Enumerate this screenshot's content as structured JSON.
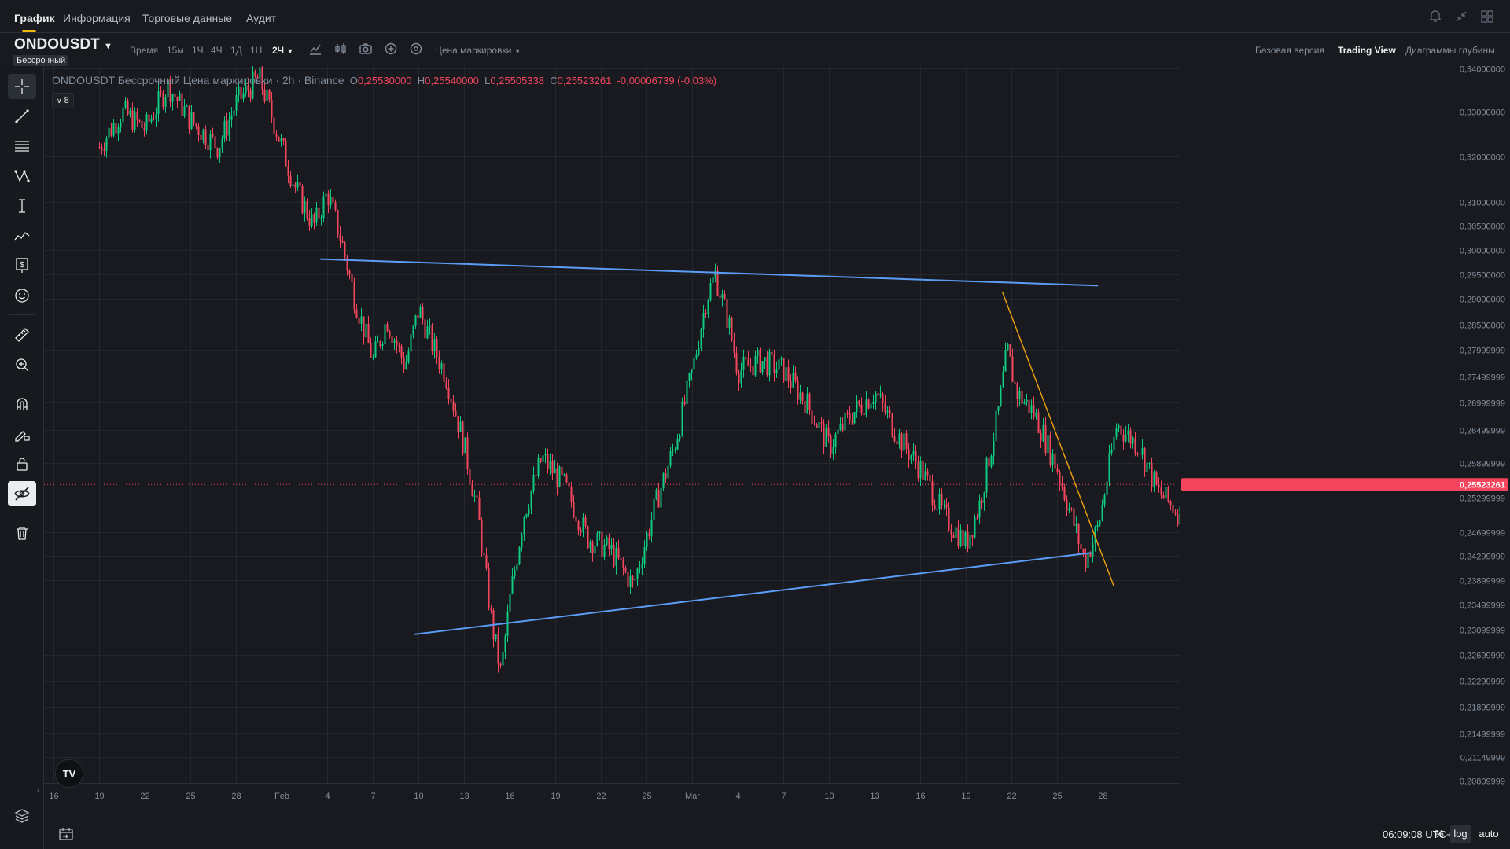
{
  "nav": {
    "tabs": [
      "График",
      "Информация",
      "Торговые данные",
      "Аудит"
    ],
    "active_tab": "График"
  },
  "symbol": {
    "name": "ONDOUSDT",
    "badge": "Бессрочный"
  },
  "toolbar": {
    "time_label": "Время",
    "intervals": [
      "15м",
      "1Ч",
      "4Ч",
      "1Д",
      "1Н",
      "2Ч"
    ],
    "active_interval": "2Ч",
    "price_source": "Цена маркировки",
    "views": [
      "Базовая версия",
      "Trading View",
      "Диаграммы глубины"
    ],
    "active_view": "Trading View"
  },
  "legend": {
    "title": "ONDOUSDT Бессрочный Цена маркировки · 2h · Binance",
    "open_label": "O",
    "open": "0,25530000",
    "high_label": "H",
    "high": "0,25540000",
    "low_label": "L",
    "low": "0,25505338",
    "close_label": "C",
    "close": "0,25523261",
    "change": "-0,00006739 (-0.03%)",
    "indicators_count": "8"
  },
  "colors": {
    "up": "#0ecb81",
    "down": "#f6465d",
    "trendline": "#5b9cf6",
    "breakout_line": "#f0a30a",
    "accent": "#f0b90b",
    "background": "#181a20"
  },
  "logo": {
    "text": "TV"
  },
  "chart_data": {
    "type": "candlestick",
    "symbol": "ONDOUSDT",
    "interval": "2h",
    "price_axis": {
      "scale": "log",
      "ticks": [
        {
          "label": "0,34000000",
          "value": 0.34
        },
        {
          "label": "0,33000000",
          "value": 0.33
        },
        {
          "label": "0,32000000",
          "value": 0.32
        },
        {
          "label": "0,31000000",
          "value": 0.31
        },
        {
          "label": "0,30500000",
          "value": 0.305
        },
        {
          "label": "0,30000000",
          "value": 0.3
        },
        {
          "label": "0,29500000",
          "value": 0.295
        },
        {
          "label": "0,29000000",
          "value": 0.29
        },
        {
          "label": "0,28500000",
          "value": 0.285
        },
        {
          "label": "0,27999999",
          "value": 0.28
        },
        {
          "label": "0,27499999",
          "value": 0.275
        },
        {
          "label": "0,26999999",
          "value": 0.27
        },
        {
          "label": "0,26499999",
          "value": 0.265
        },
        {
          "label": "0,25899999",
          "value": 0.259
        },
        {
          "label": "0,25299999",
          "value": 0.253
        },
        {
          "label": "0,24699999",
          "value": 0.247
        },
        {
          "label": "0,24299999",
          "value": 0.243
        },
        {
          "label": "0,23899999",
          "value": 0.239
        },
        {
          "label": "0,23499999",
          "value": 0.235
        },
        {
          "label": "0,23099999",
          "value": 0.231
        },
        {
          "label": "0,22699999",
          "value": 0.227
        },
        {
          "label": "0,22299999",
          "value": 0.223
        },
        {
          "label": "0,21899999",
          "value": 0.219
        },
        {
          "label": "0,21499999",
          "value": 0.215
        },
        {
          "label": "0,21149999",
          "value": 0.2115
        },
        {
          "label": "0,20809999",
          "value": 0.2081
        }
      ],
      "range": [
        0.2078,
        0.3405
      ]
    },
    "time_axis": {
      "labels": [
        "16",
        "19",
        "22",
        "25",
        "28",
        "Feb",
        "4",
        "7",
        "10",
        "13",
        "16",
        "19",
        "22",
        "25",
        "Mar",
        "4",
        "7",
        "10",
        "13",
        "16",
        "19",
        "22",
        "25",
        "28"
      ]
    },
    "current_price": {
      "label": "0,25523261",
      "value": 0.25523261
    },
    "path_points": [
      [
        0,
        0.333
      ],
      [
        1,
        0.322
      ],
      [
        1.5,
        0.33
      ],
      [
        2,
        0.326
      ],
      [
        2.5,
        0.336
      ],
      [
        3,
        0.328
      ],
      [
        3.6,
        0.322
      ],
      [
        4,
        0.332
      ],
      [
        4.5,
        0.338
      ],
      [
        5,
        0.322
      ],
      [
        5.3,
        0.313
      ],
      [
        5.7,
        0.305
      ],
      [
        6,
        0.312
      ],
      [
        6.3,
        0.302
      ],
      [
        6.6,
        0.29
      ],
      [
        7,
        0.278
      ],
      [
        7.3,
        0.286
      ],
      [
        7.7,
        0.277
      ],
      [
        8,
        0.288
      ],
      [
        8.3,
        0.281
      ],
      [
        8.6,
        0.275
      ],
      [
        9,
        0.262
      ],
      [
        9.3,
        0.25
      ],
      [
        9.6,
        0.232
      ],
      [
        9.8,
        0.224
      ],
      [
        10,
        0.236
      ],
      [
        10.3,
        0.25
      ],
      [
        10.7,
        0.26
      ],
      [
        11.2,
        0.255
      ],
      [
        11.7,
        0.246
      ],
      [
        12.2,
        0.244
      ],
      [
        12.7,
        0.238
      ],
      [
        13.2,
        0.252
      ],
      [
        13.6,
        0.262
      ],
      [
        14,
        0.276
      ],
      [
        14.3,
        0.29
      ],
      [
        14.5,
        0.295
      ],
      [
        14.8,
        0.285
      ],
      [
        15,
        0.276
      ],
      [
        15.5,
        0.278
      ],
      [
        16,
        0.276
      ],
      [
        16.5,
        0.27
      ],
      [
        17,
        0.262
      ],
      [
        17.5,
        0.268
      ],
      [
        18,
        0.272
      ],
      [
        18.5,
        0.264
      ],
      [
        19,
        0.258
      ],
      [
        19.5,
        0.25
      ],
      [
        20,
        0.245
      ],
      [
        20.3,
        0.252
      ],
      [
        20.7,
        0.268
      ],
      [
        20.9,
        0.28
      ],
      [
        21.1,
        0.272
      ],
      [
        21.5,
        0.268
      ],
      [
        22,
        0.258
      ],
      [
        22.3,
        0.25
      ],
      [
        22.6,
        0.242
      ],
      [
        22.9,
        0.248
      ],
      [
        23.3,
        0.266
      ],
      [
        23.8,
        0.262
      ],
      [
        24.2,
        0.254
      ],
      [
        24.7,
        0.25
      ],
      [
        25,
        0.255
      ],
      [
        25.4,
        0.26
      ],
      [
        25.8,
        0.272
      ],
      [
        26.3,
        0.268
      ],
      [
        26.8,
        0.262
      ],
      [
        27.2,
        0.255
      ],
      [
        27.6,
        0.25
      ],
      [
        28,
        0.246
      ],
      [
        28.3,
        0.244
      ],
      [
        28.7,
        0.248
      ],
      [
        29.1,
        0.254
      ],
      [
        29.6,
        0.258
      ],
      [
        30,
        0.256
      ],
      [
        30.4,
        0.262
      ],
      [
        30.8,
        0.275
      ],
      [
        31.1,
        0.265
      ],
      [
        31.5,
        0.26
      ],
      [
        31.9,
        0.266
      ],
      [
        32.3,
        0.27
      ],
      [
        32.7,
        0.282
      ],
      [
        33,
        0.29
      ],
      [
        33.3,
        0.284
      ],
      [
        33.6,
        0.28
      ],
      [
        34,
        0.282
      ],
      [
        34.3,
        0.272
      ],
      [
        34.6,
        0.264
      ],
      [
        35,
        0.26
      ],
      [
        35.4,
        0.256
      ],
      [
        35.7,
        0.262
      ],
      [
        36,
        0.256
      ],
      [
        36.3,
        0.25
      ],
      [
        36.6,
        0.246
      ],
      [
        36.8,
        0.248
      ],
      [
        37,
        0.252
      ],
      [
        37.4,
        0.256
      ],
      [
        37.7,
        0.252
      ],
      [
        38,
        0.26
      ],
      [
        38.2,
        0.255
      ]
    ],
    "trendlines": [
      {
        "name": "resistance",
        "color": "#5b9cf6",
        "from": [
          5.85,
          0.2981
        ],
        "to": [
          22.9,
          0.2927
        ]
      },
      {
        "name": "support",
        "color": "#5b9cf6",
        "from": [
          7.9,
          0.2302
        ],
        "to": [
          22.75,
          0.2435
        ]
      },
      {
        "name": "breakout",
        "color": "#f0a30a",
        "from": [
          20.8,
          0.2915
        ],
        "to": [
          23.25,
          0.2379
        ]
      }
    ],
    "grid": true
  },
  "bottom": {
    "clock": "06:09:08 UTC+2",
    "percent_label": "%",
    "log_label": "log",
    "auto_label": "auto"
  }
}
